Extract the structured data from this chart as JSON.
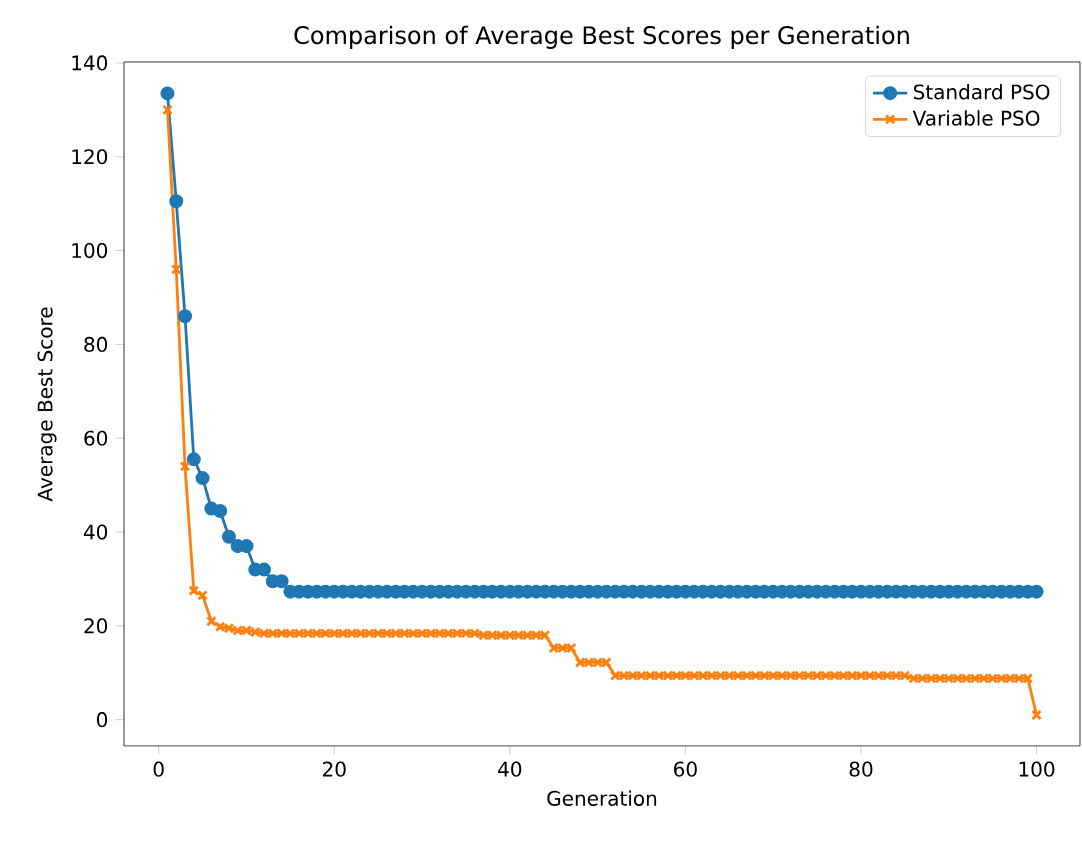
{
  "chart_data": {
    "type": "line",
    "title": "Comparison of Average Best Scores per Generation",
    "xlabel": "Generation",
    "ylabel": "Average Best Score",
    "x": [
      1,
      2,
      3,
      4,
      5,
      6,
      7,
      8,
      9,
      10,
      11,
      12,
      13,
      14,
      15,
      16,
      17,
      18,
      19,
      20,
      21,
      22,
      23,
      24,
      25,
      26,
      27,
      28,
      29,
      30,
      31,
      32,
      33,
      34,
      35,
      36,
      37,
      38,
      39,
      40,
      41,
      42,
      43,
      44,
      45,
      46,
      47,
      48,
      49,
      50,
      51,
      52,
      53,
      54,
      55,
      56,
      57,
      58,
      59,
      60,
      61,
      62,
      63,
      64,
      65,
      66,
      67,
      68,
      69,
      70,
      71,
      72,
      73,
      74,
      75,
      76,
      77,
      78,
      79,
      80,
      81,
      82,
      83,
      84,
      85,
      86,
      87,
      88,
      89,
      90,
      91,
      92,
      93,
      94,
      95,
      96,
      97,
      98,
      99,
      100
    ],
    "series": [
      {
        "name": "Standard PSO",
        "color": "#1f77b4",
        "marker": "circle",
        "values": [
          133.5,
          110.5,
          86,
          55.5,
          51.5,
          45,
          44.5,
          39,
          37,
          37,
          32,
          32,
          29.5,
          29.5,
          27.3,
          27.3,
          27.3,
          27.3,
          27.3,
          27.3,
          27.3,
          27.3,
          27.3,
          27.3,
          27.3,
          27.3,
          27.3,
          27.3,
          27.3,
          27.3,
          27.3,
          27.3,
          27.3,
          27.3,
          27.3,
          27.3,
          27.3,
          27.3,
          27.3,
          27.3,
          27.3,
          27.3,
          27.3,
          27.3,
          27.3,
          27.3,
          27.3,
          27.3,
          27.3,
          27.3,
          27.3,
          27.3,
          27.3,
          27.3,
          27.3,
          27.3,
          27.3,
          27.3,
          27.3,
          27.3,
          27.3,
          27.3,
          27.3,
          27.3,
          27.3,
          27.3,
          27.3,
          27.3,
          27.3,
          27.3,
          27.3,
          27.3,
          27.3,
          27.3,
          27.3,
          27.3,
          27.3,
          27.3,
          27.3,
          27.3,
          27.3,
          27.3,
          27.3,
          27.3,
          27.3,
          27.3,
          27.3,
          27.3,
          27.3,
          27.3,
          27.3,
          27.3,
          27.3,
          27.3,
          27.3,
          27.3,
          27.3,
          27.3,
          27.3,
          27.3
        ]
      },
      {
        "name": "Variable PSO",
        "color": "#ff7f0e",
        "marker": "cross",
        "values": [
          130,
          96,
          54,
          27.5,
          26.5,
          21,
          19.8,
          19.5,
          19,
          19,
          18.7,
          18.4,
          18.4,
          18.4,
          18.4,
          18.4,
          18.4,
          18.4,
          18.4,
          18.4,
          18.4,
          18.4,
          18.4,
          18.4,
          18.4,
          18.4,
          18.4,
          18.4,
          18.4,
          18.4,
          18.4,
          18.4,
          18.4,
          18.4,
          18.4,
          18.4,
          18,
          18,
          18,
          18,
          18,
          18,
          18,
          18,
          15.3,
          15.3,
          15.3,
          12.2,
          12.2,
          12.2,
          12.2,
          9.4,
          9.4,
          9.4,
          9.4,
          9.4,
          9.4,
          9.4,
          9.4,
          9.4,
          9.4,
          9.4,
          9.4,
          9.4,
          9.4,
          9.4,
          9.4,
          9.4,
          9.4,
          9.4,
          9.4,
          9.4,
          9.4,
          9.4,
          9.4,
          9.4,
          9.4,
          9.4,
          9.4,
          9.4,
          9.4,
          9.4,
          9.4,
          9.4,
          9.4,
          8.8,
          8.8,
          8.8,
          8.8,
          8.8,
          8.8,
          8.8,
          8.8,
          8.8,
          8.8,
          8.8,
          8.8,
          8.8,
          8.8,
          1
        ]
      }
    ],
    "xlim": [
      -3.95,
      104.95
    ],
    "ylim": [
      -5.6,
      140.2
    ],
    "xticks": [
      0,
      20,
      40,
      60,
      80,
      100
    ],
    "yticks": [
      0,
      20,
      40,
      60,
      80,
      100,
      120,
      140
    ],
    "legend": "top right",
    "grid": false
  }
}
